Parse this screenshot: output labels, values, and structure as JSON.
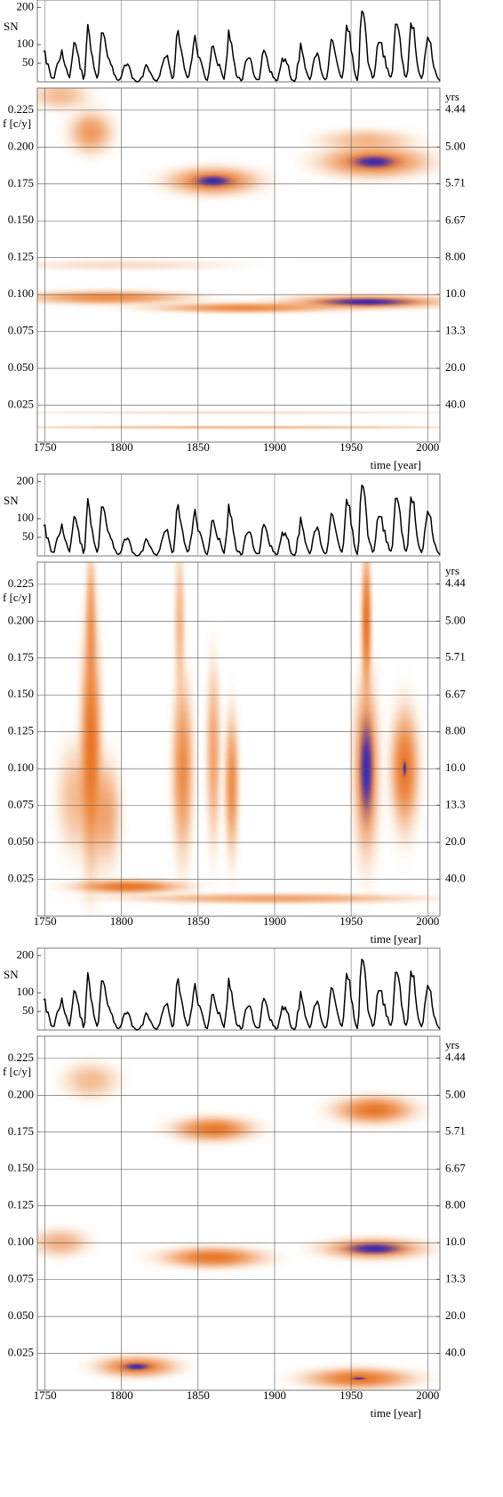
{
  "chart_data": [
    {
      "type": "line",
      "y_label": "SN",
      "color": "#000000",
      "xlim": [
        1745,
        2008
      ],
      "ylim": [
        0,
        220
      ],
      "yticks": [
        50,
        100,
        200
      ],
      "x": [
        1749,
        1750,
        1751,
        1752,
        1753,
        1754,
        1755,
        1756,
        1757,
        1758,
        1759,
        1760,
        1761,
        1762,
        1763,
        1764,
        1765,
        1766,
        1767,
        1768,
        1769,
        1770,
        1771,
        1772,
        1773,
        1774,
        1775,
        1776,
        1777,
        1778,
        1779,
        1780,
        1781,
        1782,
        1783,
        1784,
        1785,
        1786,
        1787,
        1788,
        1789,
        1790,
        1791,
        1792,
        1793,
        1794,
        1795,
        1796,
        1797,
        1798,
        1799,
        1800,
        1801,
        1802,
        1803,
        1804,
        1805,
        1806,
        1807,
        1808,
        1809,
        1810,
        1811,
        1812,
        1813,
        1814,
        1815,
        1816,
        1817,
        1818,
        1819,
        1820,
        1821,
        1822,
        1823,
        1824,
        1825,
        1826,
        1827,
        1828,
        1829,
        1830,
        1831,
        1832,
        1833,
        1834,
        1835,
        1836,
        1837,
        1838,
        1839,
        1840,
        1841,
        1842,
        1843,
        1844,
        1845,
        1846,
        1847,
        1848,
        1849,
        1850,
        1851,
        1852,
        1853,
        1854,
        1855,
        1856,
        1857,
        1858,
        1859,
        1860,
        1861,
        1862,
        1863,
        1864,
        1865,
        1866,
        1867,
        1868,
        1869,
        1870,
        1871,
        1872,
        1873,
        1874,
        1875,
        1876,
        1877,
        1878,
        1879,
        1880,
        1881,
        1882,
        1883,
        1884,
        1885,
        1886,
        1887,
        1888,
        1889,
        1890,
        1891,
        1892,
        1893,
        1894,
        1895,
        1896,
        1897,
        1898,
        1899,
        1900,
        1901,
        1902,
        1903,
        1904,
        1905,
        1906,
        1907,
        1908,
        1909,
        1910,
        1911,
        1912,
        1913,
        1914,
        1915,
        1916,
        1917,
        1918,
        1919,
        1920,
        1921,
        1922,
        1923,
        1924,
        1925,
        1926,
        1927,
        1928,
        1929,
        1930,
        1931,
        1932,
        1933,
        1934,
        1935,
        1936,
        1937,
        1938,
        1939,
        1940,
        1941,
        1942,
        1943,
        1944,
        1945,
        1946,
        1947,
        1948,
        1949,
        1950,
        1951,
        1952,
        1953,
        1954,
        1955,
        1956,
        1957,
        1958,
        1959,
        1960,
        1961,
        1962,
        1963,
        1964,
        1965,
        1966,
        1967,
        1968,
        1969,
        1970,
        1971,
        1972,
        1973,
        1974,
        1975,
        1976,
        1977,
        1978,
        1979,
        1980,
        1981,
        1982,
        1983,
        1984,
        1985,
        1986,
        1987,
        1988,
        1989,
        1990,
        1991,
        1992,
        1993,
        1994,
        1995,
        1996,
        1997,
        1998,
        1999,
        2000,
        2001,
        2002,
        2003,
        2004,
        2005,
        2006,
        2007,
        2008
      ],
      "values": [
        81,
        83,
        48,
        48,
        31,
        12,
        10,
        10,
        32,
        48,
        54,
        63,
        86,
        61,
        45,
        36,
        21,
        11,
        38,
        70,
        106,
        101,
        82,
        67,
        35,
        31,
        7,
        20,
        93,
        154,
        126,
        85,
        68,
        39,
        23,
        10,
        24,
        83,
        132,
        131,
        118,
        90,
        67,
        60,
        47,
        41,
        21,
        16,
        6,
        4,
        7,
        15,
        34,
        45,
        43,
        48,
        42,
        28,
        10,
        8,
        3,
        0,
        1,
        5,
        12,
        14,
        35,
        46,
        41,
        30,
        24,
        16,
        7,
        4,
        2,
        9,
        17,
        36,
        50,
        64,
        67,
        71,
        48,
        28,
        9,
        13,
        57,
        122,
        138,
        103,
        86,
        65,
        37,
        24,
        11,
        15,
        40,
        62,
        99,
        125,
        96,
        67,
        65,
        54,
        39,
        21,
        7,
        4,
        23,
        55,
        94,
        96,
        77,
        59,
        44,
        47,
        31,
        16,
        7,
        38,
        74,
        139,
        111,
        102,
        66,
        45,
        17,
        11,
        12,
        3,
        6,
        32,
        54,
        60,
        64,
        64,
        52,
        25,
        13,
        7,
        6,
        7,
        36,
        73,
        85,
        78,
        64,
        42,
        26,
        27,
        12,
        10,
        3,
        5,
        24,
        42,
        64,
        54,
        62,
        49,
        44,
        19,
        6,
        4,
        1,
        10,
        47,
        57,
        104,
        81,
        64,
        38,
        26,
        14,
        6,
        17,
        44,
        64,
        69,
        78,
        65,
        36,
        21,
        11,
        6,
        9,
        36,
        80,
        114,
        110,
        89,
        68,
        48,
        31,
        16,
        10,
        33,
        93,
        152,
        136,
        135,
        84,
        69,
        32,
        14,
        4,
        38,
        142,
        190,
        185,
        159,
        112,
        54,
        38,
        28,
        10,
        15,
        47,
        94,
        106,
        106,
        105,
        67,
        69,
        38,
        35,
        16,
        13,
        28,
        93,
        155,
        155,
        140,
        116,
        67,
        46,
        18,
        13,
        29,
        100,
        158,
        143,
        146,
        94,
        55,
        30,
        18,
        9,
        22,
        64,
        93,
        120,
        111,
        104,
        64,
        40,
        30,
        15,
        8,
        3
      ]
    },
    {
      "type": "heatmap",
      "x_label": "time [year]",
      "y_label": "f [c/y]",
      "y2_label": "yrs",
      "y2scale": "reciprocal",
      "grid": true,
      "colors": [
        "#e8701a",
        "#2a1fc0"
      ],
      "xlim": [
        1745,
        2008
      ],
      "xticks": [
        1750,
        1800,
        1850,
        1900,
        1950,
        2000
      ],
      "ylim": [
        0,
        0.24
      ],
      "yticks": [
        0.025,
        {
          "value": 0.05,
          "label": "0.050"
        },
        0.075,
        {
          "value": 0.1,
          "label": "0.100"
        },
        0.125,
        {
          "value": 0.15,
          "label": "0.150"
        },
        0.175,
        {
          "value": 0.2,
          "label": "0.200"
        },
        0.225
      ],
      "y2ticks": [
        4.44,
        {
          "value": 5,
          "label": "5.00"
        },
        5.71,
        6.67,
        {
          "value": 8,
          "label": "8.00"
        },
        {
          "value": 10,
          "label": "10.0"
        },
        13.3,
        {
          "value": 20,
          "label": "20.0"
        },
        {
          "value": 40,
          "label": "40.0"
        }
      ],
      "blobs": [
        {
          "x": 1780,
          "y": 0.21,
          "dx": 12,
          "dy": 0.012,
          "z": 0.45
        },
        {
          "x": 1760,
          "y": 0.235,
          "dx": 15,
          "dy": 0.008,
          "z": 0.3
        },
        {
          "x": 1860,
          "y": 0.177,
          "dx": 25,
          "dy": 0.008,
          "z": 0.9
        },
        {
          "x": 1965,
          "y": 0.19,
          "dx": 30,
          "dy": 0.009,
          "z": 0.9
        },
        {
          "x": 1960,
          "y": 0.205,
          "dx": 25,
          "dy": 0.006,
          "z": 0.3
        },
        {
          "x": 1790,
          "y": 0.098,
          "dx": 45,
          "dy": 0.004,
          "z": 0.5
        },
        {
          "x": 1880,
          "y": 0.091,
          "dx": 50,
          "dy": 0.003,
          "z": 0.5
        },
        {
          "x": 1960,
          "y": 0.095,
          "dx": 45,
          "dy": 0.004,
          "z": 1.0
        },
        {
          "x": 1800,
          "y": 0.12,
          "dx": 60,
          "dy": 0.003,
          "z": 0.15
        },
        {
          "x": 1875,
          "y": 0.01,
          "dx": 130,
          "dy": 0.001,
          "z": 0.3
        },
        {
          "x": 1875,
          "y": 0.02,
          "dx": 130,
          "dy": 0.001,
          "z": 0.15
        }
      ]
    },
    {
      "type": "heatmap",
      "x_label": "time [year]",
      "y_label": "f [c/y]",
      "y2_label": "yrs",
      "y2scale": "reciprocal",
      "grid": true,
      "colors": [
        "#e8701a",
        "#2a1fc0"
      ],
      "xlim": [
        1745,
        2008
      ],
      "xticks": [
        1750,
        1800,
        1850,
        1900,
        1950,
        2000
      ],
      "ylim": [
        0,
        0.24
      ],
      "yticks": [
        0.025,
        {
          "value": 0.05,
          "label": "0.050"
        },
        0.075,
        {
          "value": 0.1,
          "label": "0.100"
        },
        0.125,
        {
          "value": 0.15,
          "label": "0.150"
        },
        0.175,
        {
          "value": 0.2,
          "label": "0.200"
        },
        0.225
      ],
      "y2ticks": [
        4.44,
        {
          "value": 5,
          "label": "5.00"
        },
        5.71,
        6.67,
        {
          "value": 8,
          "label": "8.00"
        },
        {
          "value": 10,
          "label": "10.0"
        },
        13.3,
        {
          "value": 20,
          "label": "20.0"
        },
        {
          "value": 40,
          "label": "40.0"
        }
      ],
      "blobs": [
        {
          "x": 1780,
          "y": 0.115,
          "dx": 6,
          "dy": 0.07,
          "z": 0.6
        },
        {
          "x": 1780,
          "y": 0.2,
          "dx": 3,
          "dy": 0.04,
          "z": 0.4
        },
        {
          "x": 1790,
          "y": 0.07,
          "dx": 8,
          "dy": 0.03,
          "z": 0.4
        },
        {
          "x": 1770,
          "y": 0.08,
          "dx": 10,
          "dy": 0.03,
          "z": 0.3
        },
        {
          "x": 1805,
          "y": 0.02,
          "dx": 30,
          "dy": 0.004,
          "z": 0.6
        },
        {
          "x": 1900,
          "y": 0.012,
          "dx": 80,
          "dy": 0.003,
          "z": 0.4
        },
        {
          "x": 1840,
          "y": 0.1,
          "dx": 6,
          "dy": 0.05,
          "z": 0.5
        },
        {
          "x": 1838,
          "y": 0.2,
          "dx": 3,
          "dy": 0.04,
          "z": 0.3
        },
        {
          "x": 1860,
          "y": 0.11,
          "dx": 4,
          "dy": 0.05,
          "z": 0.4
        },
        {
          "x": 1872,
          "y": 0.09,
          "dx": 4,
          "dy": 0.04,
          "z": 0.5
        },
        {
          "x": 1960,
          "y": 0.1,
          "dx": 7,
          "dy": 0.05,
          "z": 1.0
        },
        {
          "x": 1960,
          "y": 0.2,
          "dx": 3,
          "dy": 0.04,
          "z": 0.6
        },
        {
          "x": 1985,
          "y": 0.1,
          "dx": 8,
          "dy": 0.035,
          "z": 0.7
        }
      ]
    },
    {
      "type": "heatmap",
      "x_label": "time [year]",
      "y_label": "f [c/y]",
      "y2_label": "yrs",
      "y2scale": "reciprocal",
      "grid": true,
      "colors": [
        "#e8701a",
        "#2a1fc0"
      ],
      "xlim": [
        1745,
        2008
      ],
      "xticks": [
        1750,
        1800,
        1850,
        1900,
        1950,
        2000
      ],
      "ylim": [
        0,
        0.24
      ],
      "yticks": [
        0.025,
        {
          "value": 0.05,
          "label": "0.050"
        },
        0.075,
        {
          "value": 0.1,
          "label": "0.100"
        },
        0.125,
        {
          "value": 0.15,
          "label": "0.150"
        },
        0.175,
        {
          "value": 0.2,
          "label": "0.200"
        },
        0.225
      ],
      "y2ticks": [
        4.44,
        {
          "value": 5,
          "label": "5.00"
        },
        5.71,
        6.67,
        {
          "value": 8,
          "label": "8.00"
        },
        {
          "value": 10,
          "label": "10.0"
        },
        13.3,
        {
          "value": 20,
          "label": "20.0"
        },
        {
          "value": 40,
          "label": "40.0"
        }
      ],
      "blobs": [
        {
          "x": 1780,
          "y": 0.21,
          "dx": 15,
          "dy": 0.01,
          "z": 0.3
        },
        {
          "x": 1860,
          "y": 0.177,
          "dx": 22,
          "dy": 0.007,
          "z": 0.6
        },
        {
          "x": 1965,
          "y": 0.19,
          "dx": 22,
          "dy": 0.008,
          "z": 0.6
        },
        {
          "x": 1760,
          "y": 0.1,
          "dx": 15,
          "dy": 0.008,
          "z": 0.35
        },
        {
          "x": 1860,
          "y": 0.09,
          "dx": 28,
          "dy": 0.006,
          "z": 0.6
        },
        {
          "x": 1965,
          "y": 0.096,
          "dx": 28,
          "dy": 0.006,
          "z": 1.0
        },
        {
          "x": 1810,
          "y": 0.016,
          "dx": 22,
          "dy": 0.006,
          "z": 0.85
        },
        {
          "x": 1955,
          "y": 0.008,
          "dx": 30,
          "dy": 0.006,
          "z": 0.7
        }
      ]
    }
  ]
}
